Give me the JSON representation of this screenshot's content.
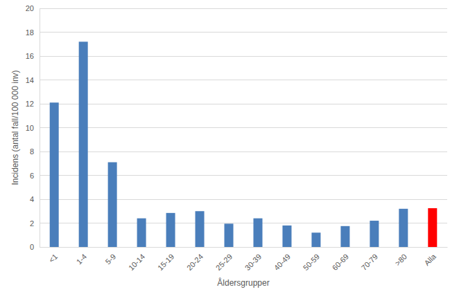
{
  "chart_data": {
    "type": "bar",
    "x_label": "Åldersgrupper",
    "y_label": "Incidens (antal fall/100 000 inv)",
    "categories": [
      "<1",
      "1-4",
      "5-9",
      "10-14",
      "15-19",
      "20-24",
      "25-29",
      "30-39",
      "40-49",
      "50-59",
      "60-69",
      "70-79",
      ">80",
      "Alla"
    ],
    "values": [
      12.1,
      17.2,
      7.1,
      2.4,
      2.85,
      3.0,
      1.95,
      2.4,
      1.8,
      1.2,
      1.75,
      2.2,
      3.2,
      3.25
    ],
    "colors": [
      "#4a7ebb",
      "#4a7ebb",
      "#4a7ebb",
      "#4a7ebb",
      "#4a7ebb",
      "#4a7ebb",
      "#4a7ebb",
      "#4a7ebb",
      "#4a7ebb",
      "#4a7ebb",
      "#4a7ebb",
      "#4a7ebb",
      "#4a7ebb",
      "#ff0000"
    ],
    "ylim": [
      0,
      20
    ],
    "yticks": [
      0,
      2,
      4,
      6,
      8,
      10,
      12,
      14,
      16,
      18,
      20
    ],
    "grid": true
  }
}
